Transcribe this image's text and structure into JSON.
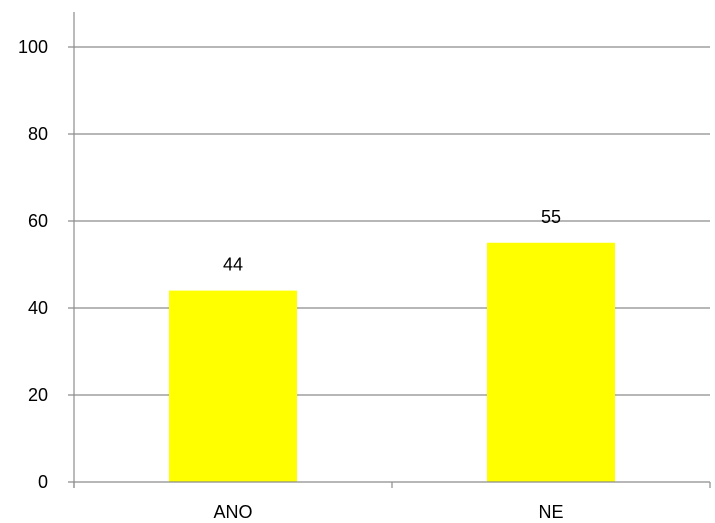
{
  "chart_data": {
    "type": "bar",
    "categories": [
      "ANO",
      "NE"
    ],
    "values": [
      44,
      55
    ],
    "data_labels": [
      "44",
      "55"
    ],
    "title": "",
    "xlabel": "",
    "ylabel": "",
    "ylim": [
      0,
      100
    ],
    "y_ticks": [
      0,
      20,
      40,
      60,
      80,
      100
    ],
    "y_tick_labels": [
      "0",
      "20",
      "40",
      "60",
      "80",
      "100"
    ],
    "grid": true,
    "legend": "none",
    "colors": {
      "bar": "#ffff00",
      "grid": "#8c8c8c",
      "axis": "#8c8c8c",
      "text": "#000000"
    }
  }
}
